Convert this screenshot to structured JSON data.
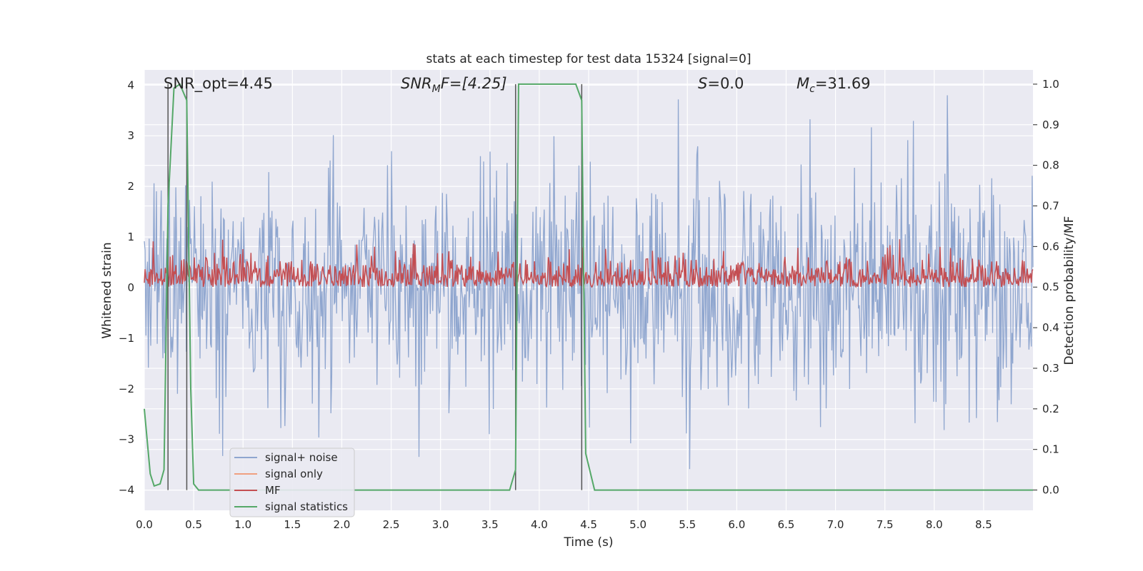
{
  "chart_data": {
    "type": "line",
    "title": "stats at each timestep for test data 15324 [signal=0]",
    "xlabel": "Time (s)",
    "ylabel_left": "Whitened strain",
    "ylabel_right": "Detection probability/MF",
    "xlim": [
      0.0,
      9.0
    ],
    "ylim_left": [
      -4.4,
      4.3
    ],
    "ylim_right": [
      -0.05,
      1.035
    ],
    "x_ticks": [
      "0.0",
      "0.5",
      "1.0",
      "1.5",
      "2.0",
      "2.5",
      "3.0",
      "3.5",
      "4.0",
      "4.5",
      "5.0",
      "5.5",
      "6.0",
      "6.5",
      "7.0",
      "7.5",
      "8.0",
      "8.5"
    ],
    "y_ticks_left": [
      "−4",
      "−3",
      "−2",
      "−1",
      "0",
      "1",
      "2",
      "3",
      "4"
    ],
    "y_ticks_right": [
      "0.0",
      "0.1",
      "0.2",
      "0.3",
      "0.4",
      "0.5",
      "0.6",
      "0.7",
      "0.8",
      "0.9",
      "1.0"
    ],
    "grid": true,
    "legend_position": "lower-left",
    "annotations": {
      "snr_opt": "SNR_opt=4.45",
      "snr_mf_base": "SNR",
      "snr_mf_sub": "M",
      "snr_mf_rest": "F=[4.25]",
      "s_sym": "S",
      "s_rest": "=0.0",
      "mc_sym": "M",
      "mc_sub": "c",
      "mc_rest": "=31.69"
    },
    "series": [
      {
        "name": "signal+ noise",
        "color": "#8fa6cf",
        "approx_range": [
          -3.6,
          3.8
        ]
      },
      {
        "name": "signal only",
        "color": "#f0a080"
      },
      {
        "name": "MF",
        "color": "#c44e52",
        "axis": "right",
        "approx_range": [
          0.5,
          0.63
        ]
      },
      {
        "name": "signal statistics",
        "color": "#55a868",
        "axis": "right",
        "x": [
          0.0,
          0.06,
          0.1,
          0.16,
          0.2,
          0.24,
          0.3,
          0.36,
          0.43,
          0.47,
          0.5,
          0.55,
          1.0,
          2.0,
          3.0,
          3.7,
          3.76,
          3.79,
          4.0,
          4.37,
          4.43,
          4.47,
          4.56,
          5.0,
          6.0,
          7.0,
          8.0,
          9.0
        ],
        "y": [
          0.2,
          0.04,
          0.01,
          0.015,
          0.05,
          0.7,
          0.99,
          1.0,
          0.96,
          0.25,
          0.015,
          0.0,
          0.0,
          0.0,
          0.0,
          0.0,
          0.05,
          1.0,
          1.0,
          1.0,
          0.96,
          0.09,
          0.0,
          0.0,
          0.0,
          0.0,
          0.0,
          0.0
        ]
      }
    ],
    "detection_markers_x": [
      0.24,
      0.43,
      3.76,
      4.43
    ]
  }
}
